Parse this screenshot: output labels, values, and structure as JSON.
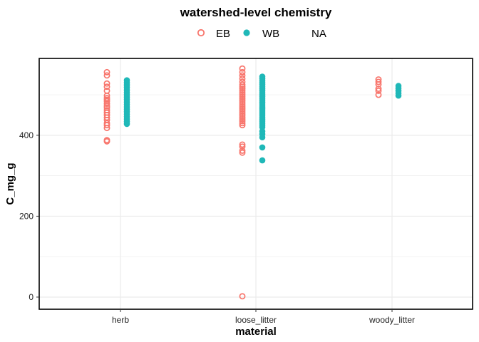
{
  "chart_data": {
    "type": "scatter",
    "title": "",
    "legend": {
      "title": "watershed-level chemistry",
      "placement": "top",
      "entries": [
        {
          "label": "EB",
          "shape": "open-circle"
        },
        {
          "label": "WB",
          "shape": "filled-circle"
        },
        {
          "label": "NA",
          "shape": "none"
        }
      ]
    },
    "xlabel": "material",
    "ylabel": "C_mg_g",
    "categories": [
      "herb",
      "loose_litter",
      "woody_litter"
    ],
    "ylim": [
      -30,
      590
    ],
    "y_ticks": [
      0,
      200,
      400
    ],
    "y_tick_labels": [
      "0",
      "200",
      "400"
    ],
    "grid": true,
    "colors": {
      "EB": "#F8766D",
      "WB": "#1FB8B8",
      "grid": "#EBEBEB"
    },
    "series": [
      {
        "name": "EB",
        "points": {
          "herb": [
            556,
            548,
            528,
            520,
            510,
            498,
            492,
            488,
            484,
            478,
            472,
            468,
            462,
            456,
            450,
            444,
            438,
            430,
            425,
            418,
            388,
            385
          ],
          "loose_litter": [
            565,
            556,
            548,
            540,
            532,
            525,
            520,
            515,
            510,
            505,
            500,
            495,
            490,
            485,
            480,
            475,
            470,
            465,
            460,
            455,
            450,
            445,
            440,
            435,
            430,
            425,
            377,
            372,
            362,
            357,
            2
          ],
          "woody_litter": [
            538,
            532,
            526,
            515,
            510,
            500
          ]
        }
      },
      {
        "name": "WB",
        "points": {
          "herb": [
            536,
            530,
            524,
            518,
            512,
            506,
            500,
            494,
            488,
            482,
            476,
            470,
            464,
            458,
            452,
            446,
            440,
            434,
            428
          ],
          "loose_litter": [
            545,
            540,
            535,
            530,
            525,
            520,
            515,
            510,
            505,
            500,
            495,
            490,
            485,
            480,
            475,
            470,
            465,
            460,
            455,
            450,
            445,
            440,
            435,
            430,
            425,
            420,
            410,
            403,
            395,
            370,
            338
          ],
          "woody_litter": [
            522,
            516,
            510,
            504,
            498
          ]
        }
      }
    ]
  }
}
